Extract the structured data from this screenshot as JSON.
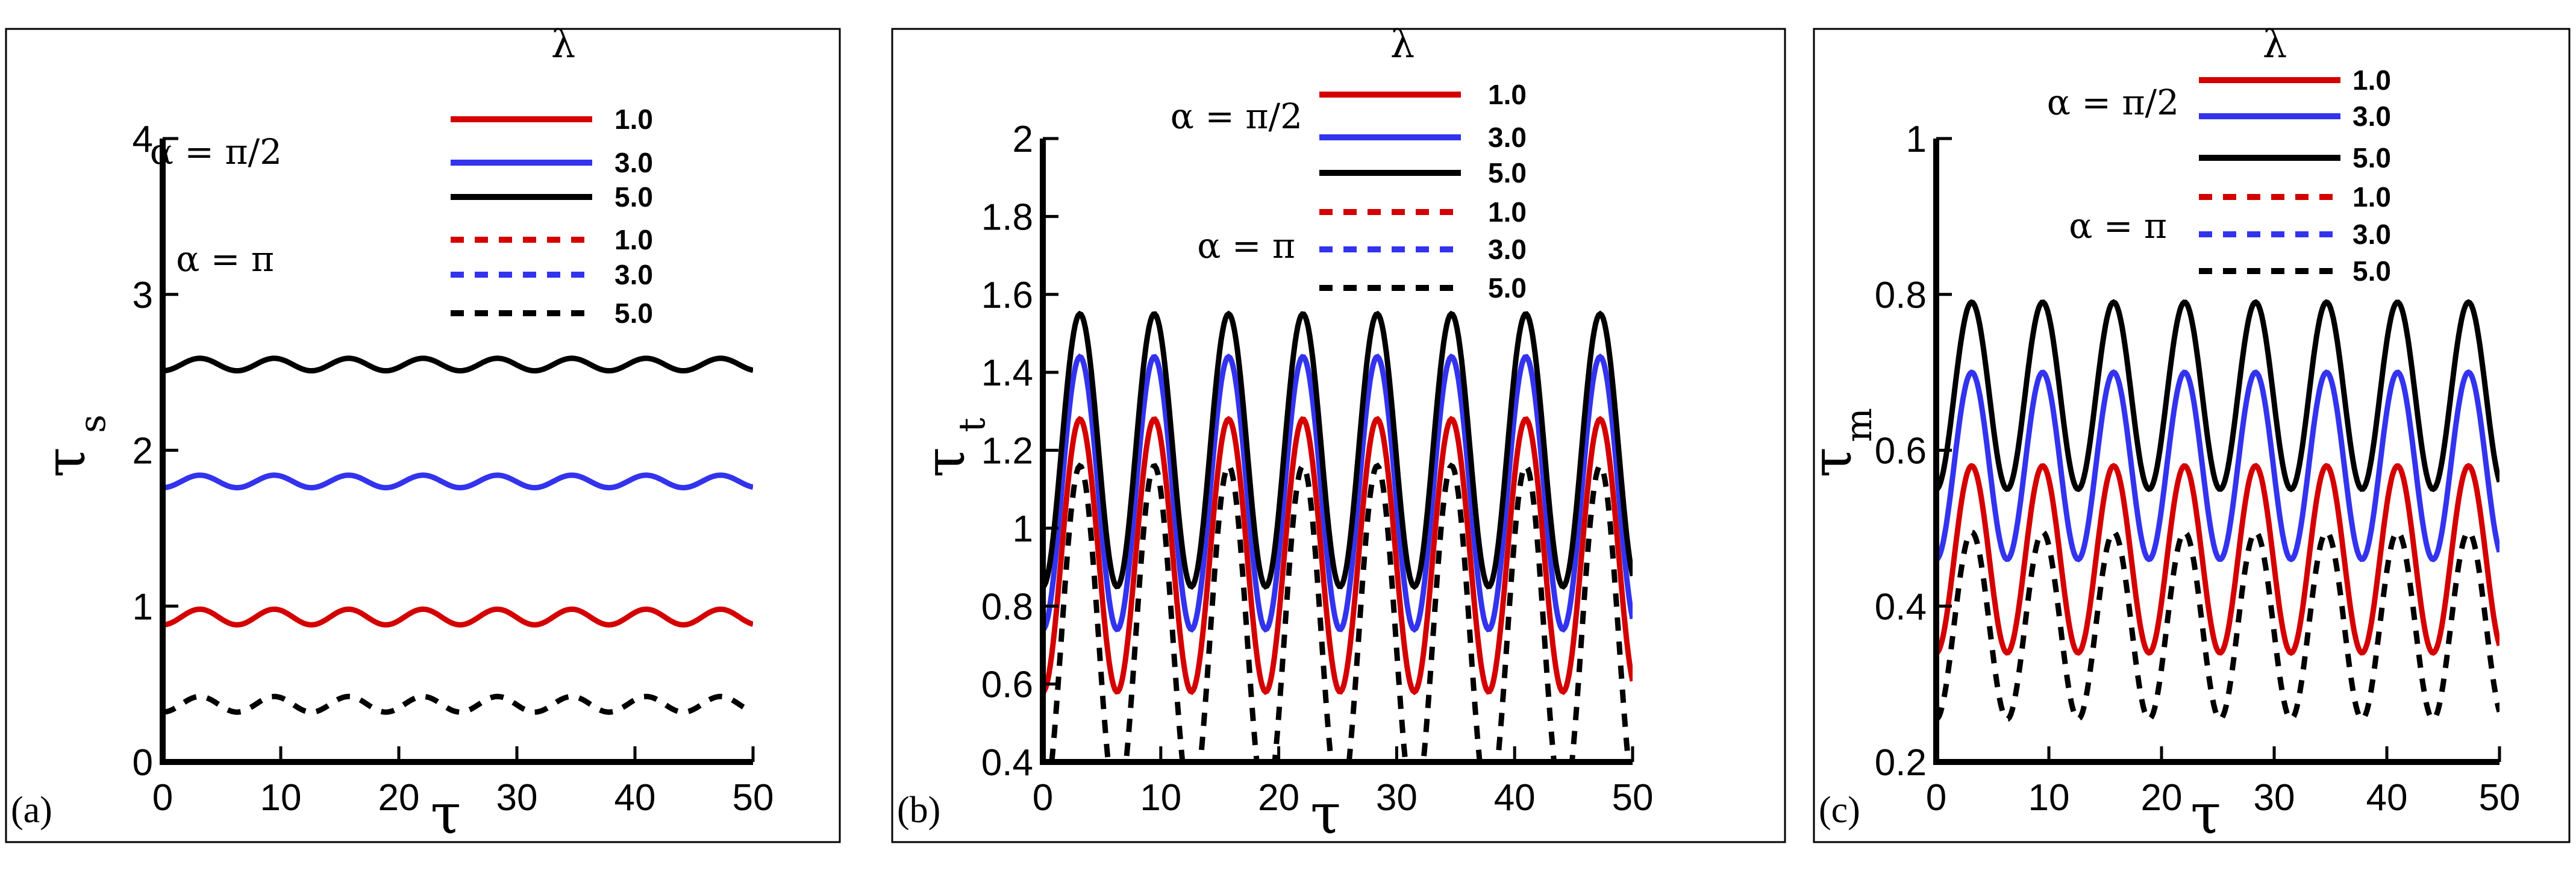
{
  "colors": {
    "red": "#d40000",
    "blue": "#3333ee",
    "black": "#000000"
  },
  "legend_title": "λ",
  "legend_group_labels": [
    "α = π/2",
    "α = π"
  ],
  "x_title": "τ",
  "panel_labels": [
    "(a)",
    "(b)",
    "(c)"
  ],
  "chart_data": [
    {
      "type": "line",
      "panel": "(a)",
      "xlabel": "τ",
      "ylabel": "τ",
      "ylabel_subscript": "s",
      "xlim": [
        0,
        50
      ],
      "ylim": [
        0,
        4
      ],
      "x_ticks": [
        0,
        10,
        20,
        30,
        40,
        50
      ],
      "y_ticks": [
        0,
        1,
        2,
        3,
        4
      ],
      "y_tick_labels": [
        "0",
        "1",
        "2",
        "3",
        "4"
      ],
      "period": 6.3,
      "legend": {
        "title": "λ",
        "groups": [
          "α = π/2",
          "α = π"
        ]
      },
      "series": [
        {
          "name": "1.0",
          "alpha": "π/2",
          "color": "red",
          "dash": "solid",
          "mean": 0.93,
          "amplitude": 0.05,
          "phase": 0.0
        },
        {
          "name": "3.0",
          "alpha": "π/2",
          "color": "blue",
          "dash": "solid",
          "mean": 1.8,
          "amplitude": 0.04,
          "phase": 0.0
        },
        {
          "name": "5.0",
          "alpha": "π/2",
          "color": "black",
          "dash": "solid",
          "mean": 2.55,
          "amplitude": 0.04,
          "phase": 0.0
        },
        {
          "name": "1.0",
          "alpha": "π",
          "color": "red",
          "dash": "dashed",
          "mean": null,
          "amplitude": null,
          "phase": null
        },
        {
          "name": "3.0",
          "alpha": "π",
          "color": "blue",
          "dash": "dashed",
          "mean": null,
          "amplitude": null,
          "phase": null
        },
        {
          "name": "5.0",
          "alpha": "π",
          "color": "black",
          "dash": "dashed",
          "mean": 0.37,
          "amplitude": 0.05,
          "phase": 0.0
        }
      ]
    },
    {
      "type": "line",
      "panel": "(b)",
      "xlabel": "τ",
      "ylabel": "τ",
      "ylabel_subscript": "t",
      "xlim": [
        0,
        50
      ],
      "ylim": [
        0.4,
        2
      ],
      "x_ticks": [
        0,
        10,
        20,
        30,
        40,
        50
      ],
      "y_ticks": [
        0.4,
        0.6,
        0.8,
        1.0,
        1.2,
        1.4,
        1.6,
        1.8,
        2.0
      ],
      "y_tick_labels": [
        "0.4",
        "0.6",
        "0.8",
        "1",
        "1.2",
        "1.4",
        "1.6",
        "1.8",
        "2"
      ],
      "period": 6.3,
      "legend": {
        "title": "λ",
        "groups": [
          "α = π/2",
          "α = π"
        ]
      },
      "series": [
        {
          "name": "1.0",
          "alpha": "π/2",
          "color": "red",
          "dash": "solid",
          "mean": 0.93,
          "amplitude": 0.35,
          "phase": 0.0
        },
        {
          "name": "3.0",
          "alpha": "π/2",
          "color": "blue",
          "dash": "solid",
          "mean": 1.09,
          "amplitude": 0.35,
          "phase": 0.0
        },
        {
          "name": "5.0",
          "alpha": "π/2",
          "color": "black",
          "dash": "solid",
          "mean": 1.2,
          "amplitude": 0.35,
          "phase": 0.0
        },
        {
          "name": "1.0",
          "alpha": "π",
          "color": "red",
          "dash": "dashed",
          "mean": null,
          "amplitude": null,
          "phase": null
        },
        {
          "name": "3.0",
          "alpha": "π",
          "color": "blue",
          "dash": "dashed",
          "mean": null,
          "amplitude": null,
          "phase": null
        },
        {
          "name": "5.0",
          "alpha": "π",
          "color": "black",
          "dash": "dashed",
          "mean": 0.72,
          "amplitude": 0.44,
          "phase": 0.0
        }
      ]
    },
    {
      "type": "line",
      "panel": "(c)",
      "xlabel": "τ",
      "ylabel": "τ",
      "ylabel_subscript": "m",
      "xlim": [
        0,
        50
      ],
      "ylim": [
        0.2,
        1
      ],
      "x_ticks": [
        0,
        10,
        20,
        30,
        40,
        50
      ],
      "y_ticks": [
        0.2,
        0.4,
        0.6,
        0.8,
        1.0
      ],
      "y_tick_labels": [
        "0.2",
        "0.4",
        "0.6",
        "0.8",
        "1"
      ],
      "period": 6.3,
      "legend": {
        "title": "λ",
        "groups": [
          "α = π/2",
          "α = π"
        ]
      },
      "series": [
        {
          "name": "1.0",
          "alpha": "π/2",
          "color": "red",
          "dash": "solid",
          "mean": 0.46,
          "amplitude": 0.12,
          "phase": 0.0
        },
        {
          "name": "3.0",
          "alpha": "π/2",
          "color": "blue",
          "dash": "solid",
          "mean": 0.58,
          "amplitude": 0.12,
          "phase": 0.0
        },
        {
          "name": "5.0",
          "alpha": "π/2",
          "color": "black",
          "dash": "solid",
          "mean": 0.67,
          "amplitude": 0.12,
          "phase": 0.0
        },
        {
          "name": "1.0",
          "alpha": "π",
          "color": "red",
          "dash": "dashed",
          "mean": null,
          "amplitude": null,
          "phase": null
        },
        {
          "name": "3.0",
          "alpha": "π",
          "color": "blue",
          "dash": "dashed",
          "mean": null,
          "amplitude": null,
          "phase": null
        },
        {
          "name": "5.0",
          "alpha": "π",
          "color": "black",
          "dash": "dashed",
          "mean": 0.375,
          "amplitude": 0.12,
          "phase": 0.0
        }
      ]
    }
  ]
}
